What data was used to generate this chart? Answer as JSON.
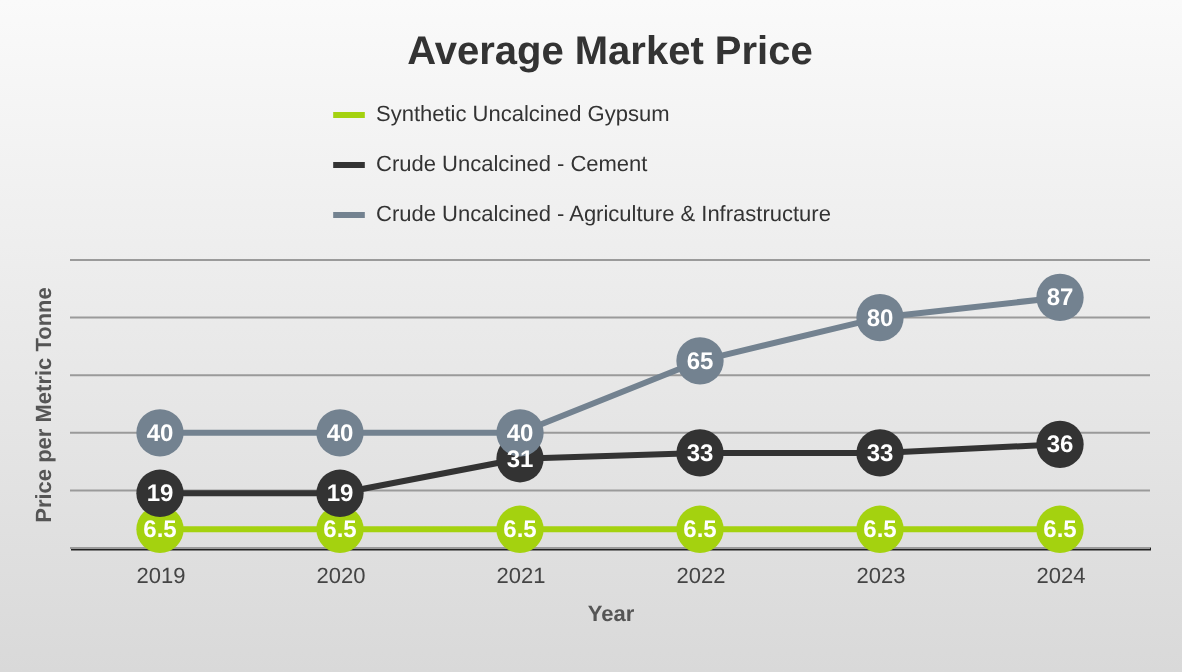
{
  "chart_data": {
    "type": "line",
    "title": "Average Market Price",
    "xlabel": "Year",
    "ylabel": "Price per Metric Tonne",
    "categories": [
      "2019",
      "2020",
      "2021",
      "2022",
      "2023",
      "2024"
    ],
    "series": [
      {
        "name": "Synthetic Uncalcined Gypsum",
        "color": "#a4d20f",
        "values": [
          6.5,
          6.5,
          6.5,
          6.5,
          6.5,
          6.5
        ]
      },
      {
        "name": "Crude Uncalcined - Cement",
        "color": "#333333",
        "values": [
          19,
          19,
          31,
          33,
          33,
          36
        ]
      },
      {
        "name": "Crude Uncalcined - Agriculture & Infrastructure",
        "color": "#738290",
        "values": [
          40,
          40,
          40,
          65,
          80,
          87
        ]
      }
    ],
    "ylim": [
      0,
      100
    ],
    "yticks": [
      {
        "value": 0,
        "label": null
      },
      {
        "value": 20,
        "label": null
      },
      {
        "value": 40,
        "label": null
      },
      {
        "value": 60,
        "label": null
      },
      {
        "value": 80,
        "label": null
      },
      {
        "value": 100,
        "label": null
      }
    ],
    "tick_labels": "x",
    "grid": "y",
    "legend": "top",
    "marker": "circle",
    "line_style": "solid",
    "data_labels": true
  }
}
